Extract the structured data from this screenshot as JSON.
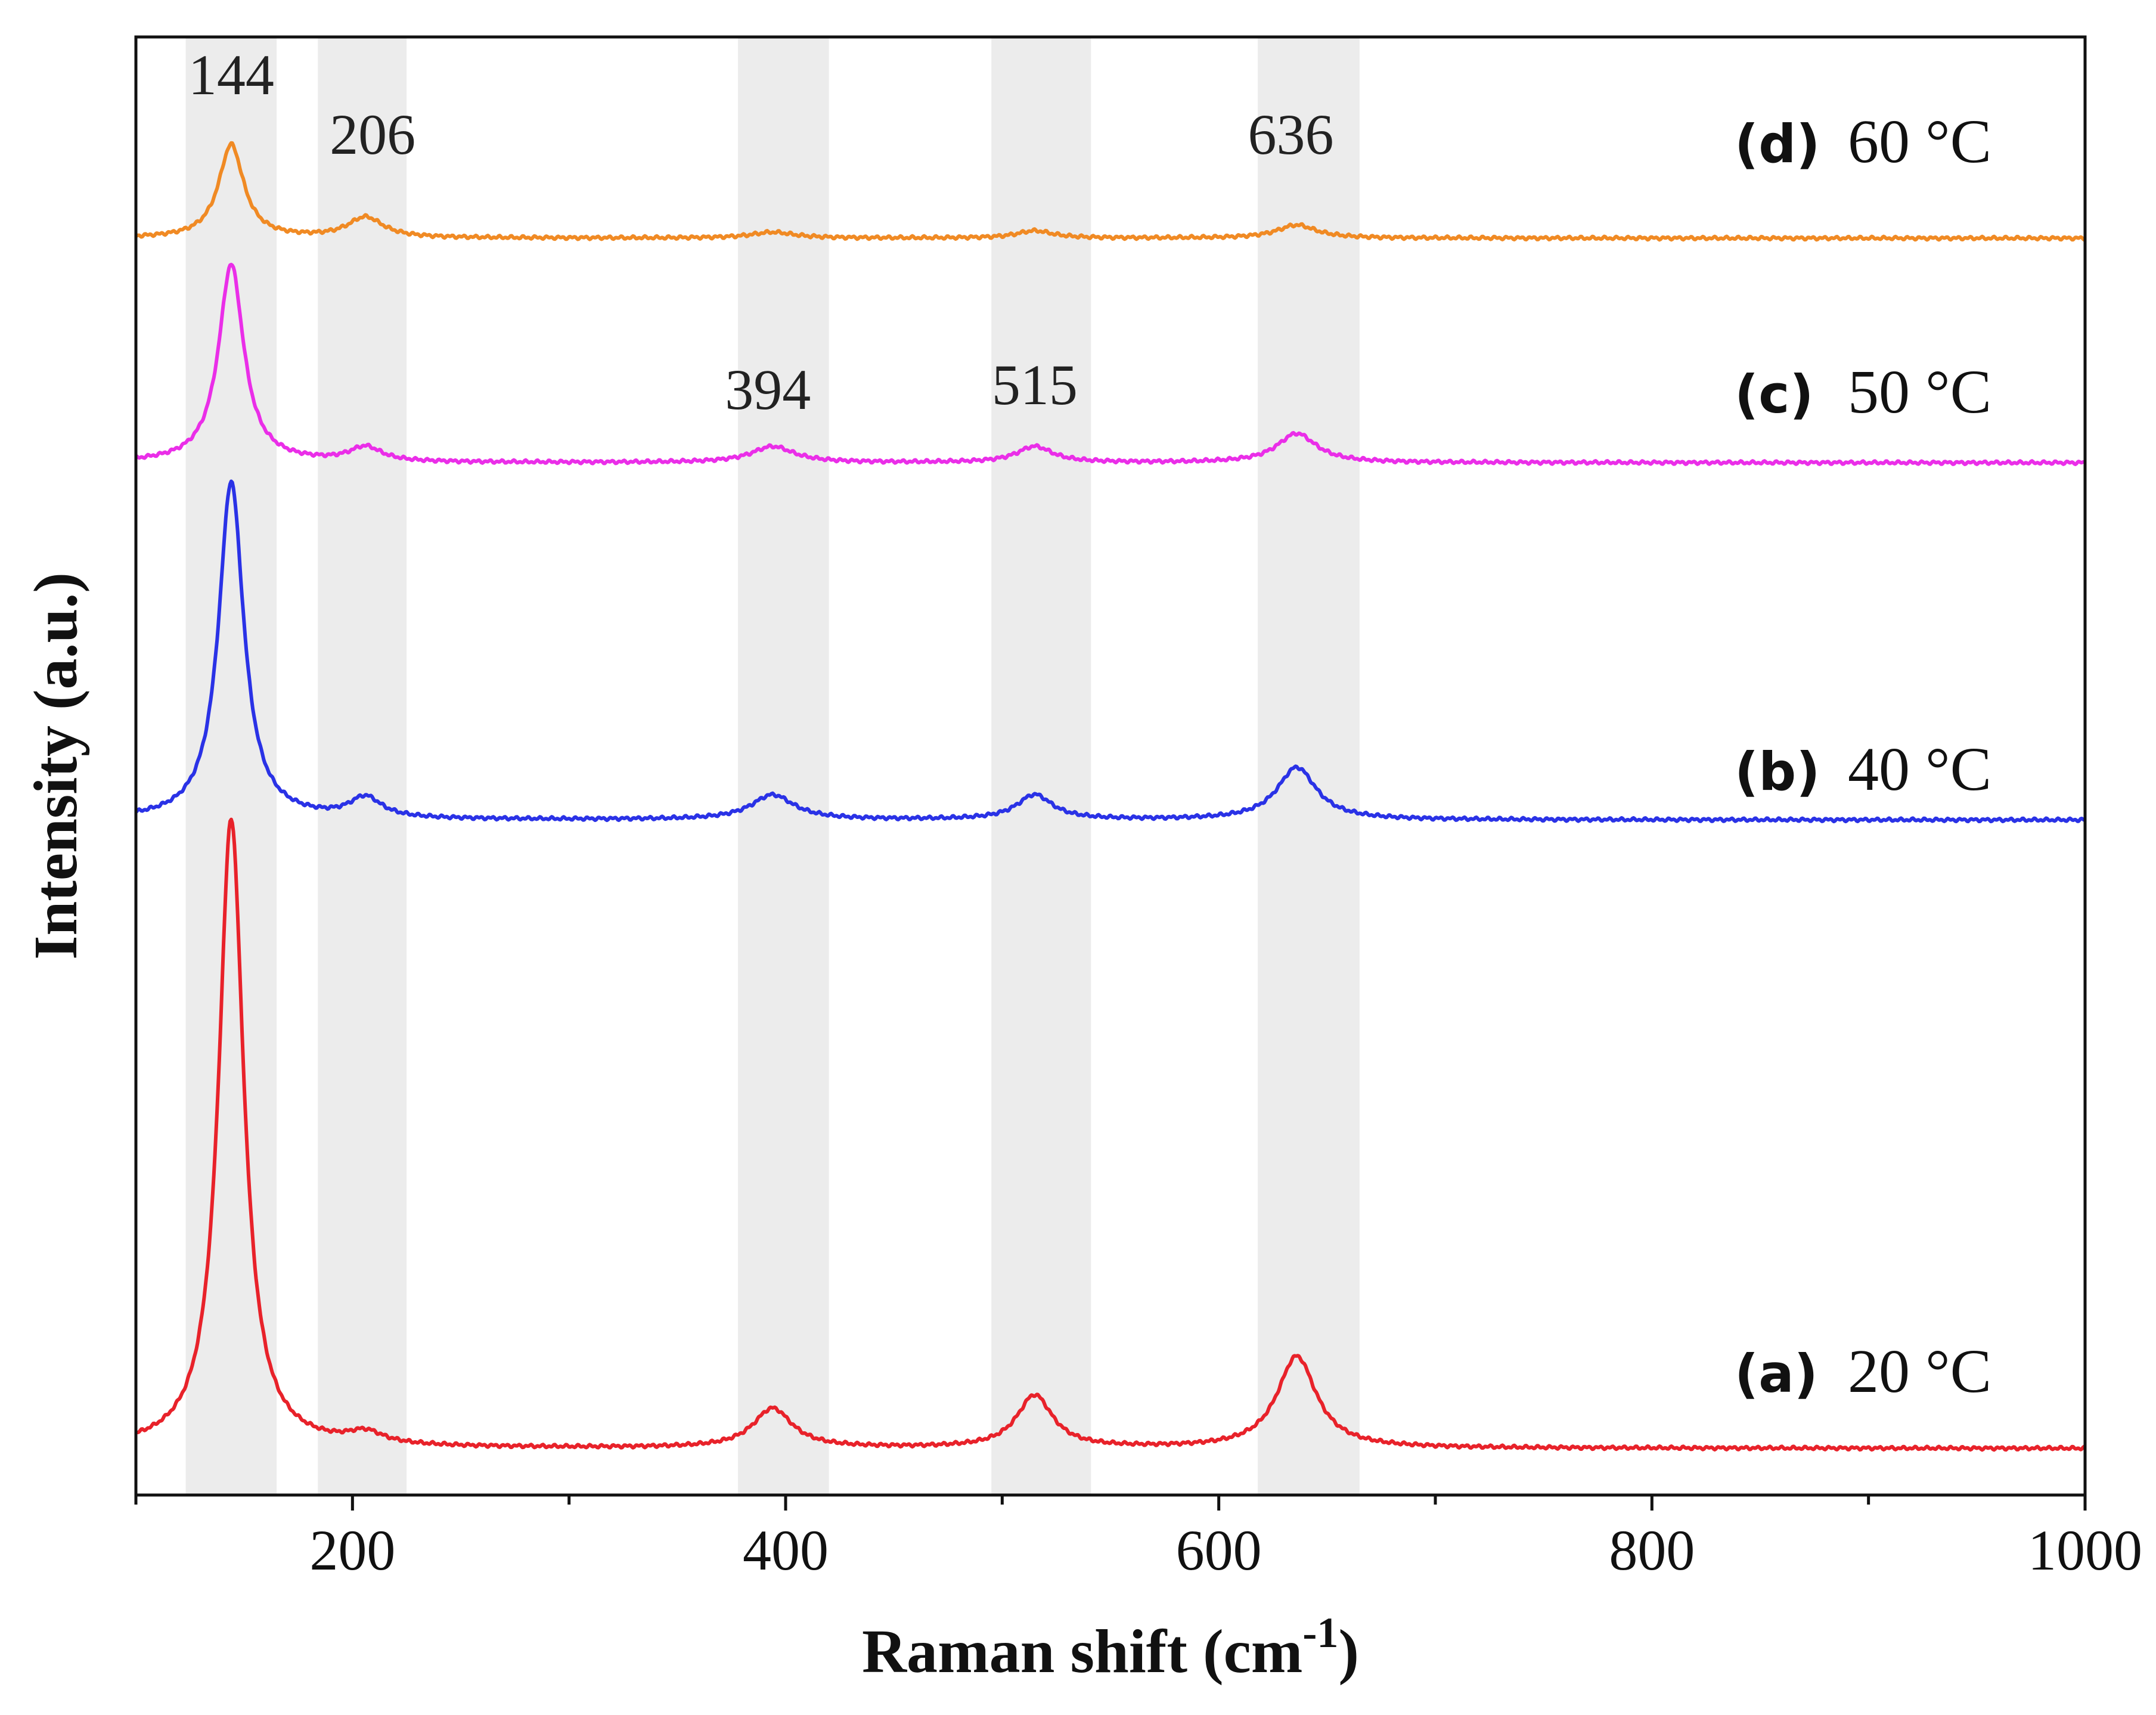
{
  "chart_data": {
    "type": "line",
    "title": "",
    "xlabel": "Raman shift (cm",
    "xlabel_sup": "-1",
    "xlabel_close": ")",
    "ylabel": "Intensity (a.u.)",
    "xlim": [
      100,
      1000
    ],
    "ylim": [
      0,
      1
    ],
    "x_ticks": [
      200,
      400,
      600,
      800,
      1000
    ],
    "x_tick_labels": [
      "200",
      "400",
      "600",
      "800",
      "1000"
    ],
    "x_minor_ticks": [
      100,
      300,
      500,
      700,
      900
    ],
    "y_ticks": [],
    "grid": false,
    "highlight_bands": [
      {
        "x_start": 123,
        "x_end": 165,
        "label": "144"
      },
      {
        "x_start": 184,
        "x_end": 225,
        "label": "206"
      },
      {
        "x_start": 378,
        "x_end": 420,
        "label": "394"
      },
      {
        "x_start": 495,
        "x_end": 541,
        "label": "515"
      },
      {
        "x_start": 618,
        "x_end": 665,
        "label": "636"
      }
    ],
    "series": [
      {
        "name": "20 °C",
        "letter": "(a)",
        "temp": "20 °C",
        "color": "#e8222a",
        "baseline": 0.032,
        "peaks": [
          {
            "x": 144,
            "h": 0.432,
            "w": 7
          },
          {
            "x": 206,
            "h": 0.008,
            "w": 10
          },
          {
            "x": 394,
            "h": 0.027,
            "w": 11
          },
          {
            "x": 515,
            "h": 0.036,
            "w": 10
          },
          {
            "x": 636,
            "h": 0.063,
            "w": 11
          }
        ]
      },
      {
        "name": "40 °C",
        "letter": "(b)",
        "temp": "40 °C",
        "color": "#2a32e6",
        "baseline": 0.463,
        "peaks": [
          {
            "x": 144,
            "h": 0.232,
            "w": 7
          },
          {
            "x": 206,
            "h": 0.014,
            "w": 9
          },
          {
            "x": 394,
            "h": 0.017,
            "w": 12
          },
          {
            "x": 515,
            "h": 0.017,
            "w": 10
          },
          {
            "x": 636,
            "h": 0.036,
            "w": 11
          }
        ]
      },
      {
        "name": "50 °C",
        "letter": "(c)",
        "temp": "50 °C",
        "color": "#ea2ee8",
        "baseline": 0.708,
        "peaks": [
          {
            "x": 144,
            "h": 0.136,
            "w": 7
          },
          {
            "x": 206,
            "h": 0.01,
            "w": 9
          },
          {
            "x": 394,
            "h": 0.011,
            "w": 12
          },
          {
            "x": 515,
            "h": 0.011,
            "w": 10
          },
          {
            "x": 636,
            "h": 0.02,
            "w": 11
          }
        ]
      },
      {
        "name": "60 °C",
        "letter": "(d)",
        "temp": "60 °C",
        "color": "#f08a24",
        "baseline": 0.862,
        "peaks": [
          {
            "x": 144,
            "h": 0.064,
            "w": 7
          },
          {
            "x": 206,
            "h": 0.014,
            "w": 10
          },
          {
            "x": 394,
            "h": 0.004,
            "w": 12
          },
          {
            "x": 515,
            "h": 0.005,
            "w": 10
          },
          {
            "x": 636,
            "h": 0.009,
            "w": 11
          }
        ]
      }
    ]
  }
}
